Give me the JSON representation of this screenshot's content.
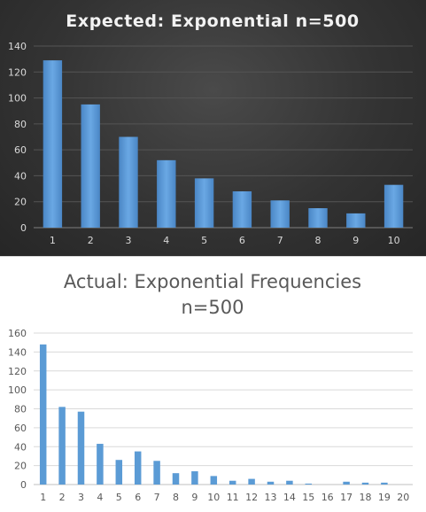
{
  "chart_data": [
    {
      "type": "bar",
      "title": "Expected:  Exponential  n=500",
      "categories": [
        "1",
        "2",
        "3",
        "4",
        "5",
        "6",
        "7",
        "8",
        "9",
        "10"
      ],
      "values": [
        129,
        95,
        70,
        52,
        38,
        28,
        21,
        15,
        11,
        33
      ],
      "ylim": [
        0,
        140
      ],
      "yticks": [
        "0",
        "20",
        "40",
        "60",
        "80",
        "100",
        "120",
        "140"
      ],
      "grid": true,
      "legend": "none",
      "theme": "dark",
      "bar_color": "#5b9bd5"
    },
    {
      "type": "bar",
      "title_lines": [
        "Actual: Exponential Frequencies",
        "n=500"
      ],
      "categories": [
        "1",
        "2",
        "3",
        "4",
        "5",
        "6",
        "7",
        "8",
        "9",
        "10",
        "11",
        "12",
        "13",
        "14",
        "15",
        "16",
        "17",
        "18",
        "19",
        "20"
      ],
      "values": [
        148,
        82,
        77,
        43,
        26,
        35,
        25,
        12,
        14,
        9,
        4,
        6,
        3,
        4,
        1,
        0,
        3,
        2,
        2,
        0
      ],
      "ylim": [
        0,
        160
      ],
      "yticks": [
        "0",
        "20",
        "40",
        "60",
        "80",
        "100",
        "120",
        "140",
        "160"
      ],
      "grid": true,
      "legend": "none",
      "theme": "light",
      "bar_color": "#5b9bd5"
    }
  ]
}
